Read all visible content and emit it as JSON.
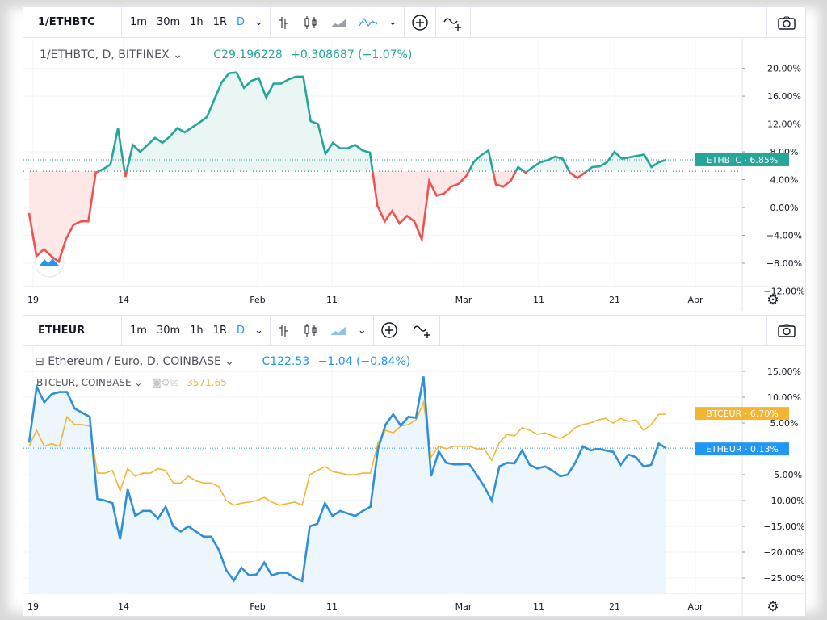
{
  "top_pane": {
    "toolbar": {
      "symbol": "1/ETHBTC",
      "intervals": [
        "1m",
        "30m",
        "1h",
        "1R",
        "D"
      ],
      "active_interval": "D"
    },
    "legend": {
      "title": "1/ETHBTC, D, BITFINEX",
      "close": "C29.196228",
      "change": "+0.308687 (+1.07%)"
    },
    "price_labels": [
      "20.00%",
      "16.00%",
      "12.00%",
      "8.00%",
      "4.00%",
      "0.00%",
      "−4.00%",
      "−8.00%",
      "−12.00%"
    ],
    "time_labels": [
      "19",
      "14",
      "Feb",
      "11",
      "Mar",
      "11",
      "21",
      "Apr"
    ],
    "badge": {
      "label": "ETHBTC",
      "value": "6.85%",
      "color": "#26a69a"
    },
    "colors": {
      "up": "#26a69a",
      "down": "#ef5350"
    }
  },
  "bottom_pane": {
    "toolbar": {
      "symbol": "ETHEUR",
      "intervals": [
        "1m",
        "30m",
        "1h",
        "1R",
        "D"
      ],
      "active_interval": "D"
    },
    "legend": {
      "title": "Ethereum / Euro, D, COINBASE",
      "close": "C122.53",
      "change": "−1.04 (−0.84%)"
    },
    "compare": {
      "title": "BTCEUR, COINBASE",
      "value": "3571.65"
    },
    "price_labels": [
      "15.00%",
      "10.00%",
      "5.00%",
      "−5.00%",
      "−10.00%",
      "−15.00%",
      "−20.00%",
      "−25.00%"
    ],
    "time_labels": [
      "19",
      "14",
      "Feb",
      "11",
      "Mar",
      "11",
      "21",
      "Apr"
    ],
    "badges": [
      {
        "label": "BTCEUR",
        "value": "6.70%",
        "color": "#f2b632"
      },
      {
        "label": "ETHEUR",
        "value": "0.13%",
        "color": "#2196f3"
      }
    ]
  },
  "chart_data": [
    {
      "type": "area",
      "title": "1/ETHBTC, D, BITFINEX",
      "x_range": [
        "2019-01-01",
        "2019-03-27"
      ],
      "ylim": [
        -12,
        22
      ],
      "y_unit": "%",
      "baseline": 5.2,
      "series": [
        {
          "name": "1/ETHBTC",
          "values": [
            -0.8,
            -7,
            -6,
            -7,
            -7.8,
            -4.5,
            -2.5,
            -2,
            -2,
            5,
            5.5,
            6.2,
            11.4,
            4.4,
            9,
            8,
            9,
            10,
            9.3,
            10.2,
            11.4,
            10.8,
            11.5,
            12.2,
            13,
            15.5,
            18,
            19.3,
            19.4,
            17.2,
            18.2,
            18.6,
            15.8,
            17.8,
            17.8,
            18.4,
            18.8,
            18.8,
            12.4,
            12,
            7.7,
            9.3,
            8.5,
            8.5,
            9,
            8.2,
            7.9,
            0.3,
            -2,
            -0.5,
            -2.3,
            -1.2,
            -2,
            -4.6,
            3.8,
            1.7,
            2,
            3,
            3.4,
            4.5,
            6.5,
            7.5,
            8.2,
            3.3,
            3,
            3.8,
            5.8,
            5,
            5.8,
            6.5,
            6.8,
            7.3,
            7,
            5,
            4.2,
            5,
            5.8,
            5.9,
            6.5,
            8,
            7,
            7.2,
            7.4,
            7.6,
            5.8,
            6.5,
            6.85
          ]
        }
      ]
    },
    {
      "type": "line",
      "title": "Ethereum / Euro, D, COINBASE",
      "x_range": [
        "2019-01-01",
        "2019-03-27"
      ],
      "ylim": [
        -29,
        17
      ],
      "y_unit": "%",
      "series": [
        {
          "name": "ETHEUR",
          "color": "#2f8fd8",
          "values": [
            1.2,
            12,
            9,
            10.6,
            11,
            11,
            7.8,
            7,
            6.2,
            -9.7,
            -10,
            -10.5,
            -17.5,
            -7.8,
            -13,
            -12,
            -12,
            -13.5,
            -11.2,
            -15,
            -16,
            -15,
            -16,
            -17,
            -17,
            -19.5,
            -23.5,
            -25.5,
            -23,
            -24.5,
            -24.3,
            -22,
            -24.5,
            -24,
            -24,
            -25,
            -25.6,
            -15,
            -14.5,
            -10.5,
            -13,
            -12,
            -12.5,
            -13,
            -12,
            -11.2,
            0,
            4.7,
            6.7,
            4.5,
            6.2,
            6,
            14,
            -5.3,
            -0.5,
            -2.7,
            -3,
            -3,
            -2.9,
            -5,
            -7.3,
            -10,
            -3.4,
            -2.7,
            -2.8,
            -0.3,
            -3.1,
            -3.8,
            -3.4,
            -4.2,
            -5.3,
            -5,
            -2.7,
            0.5,
            -0.3,
            0,
            -0.3,
            -0.6,
            -3.1,
            -1.1,
            -1.6,
            -3.4,
            -3.1,
            1,
            0.13
          ]
        },
        {
          "name": "BTCEUR",
          "color": "#f2b632",
          "values": [
            0.5,
            3.6,
            0.5,
            1,
            0.5,
            6.2,
            4.7,
            4.7,
            4.4,
            -4.7,
            -4.7,
            -4.2,
            -8.1,
            -3.8,
            -5.3,
            -4.7,
            -4.7,
            -3.8,
            -4.2,
            -6.6,
            -6.6,
            -5.3,
            -6.2,
            -6.6,
            -6.6,
            -7.3,
            -10,
            -10.9,
            -10.5,
            -10.3,
            -10,
            -9.4,
            -10.3,
            -10.9,
            -10.6,
            -10.3,
            -10.9,
            -5,
            -4.2,
            -3.4,
            -4.4,
            -4.7,
            -5,
            -5,
            -4.7,
            -4.7,
            1.2,
            3.6,
            3.1,
            4.4,
            4.7,
            5.6,
            9,
            -1.6,
            0.5,
            0,
            0.5,
            0.5,
            0.5,
            0,
            0,
            -2.2,
            1.2,
            2.8,
            2.5,
            4.1,
            3.6,
            2.8,
            3.1,
            2.5,
            2,
            2.8,
            4.1,
            4.7,
            5,
            5.6,
            5.9,
            5,
            5.9,
            5.3,
            5.6,
            3.6,
            4.7,
            6.7,
            6.7
          ]
        }
      ]
    }
  ]
}
